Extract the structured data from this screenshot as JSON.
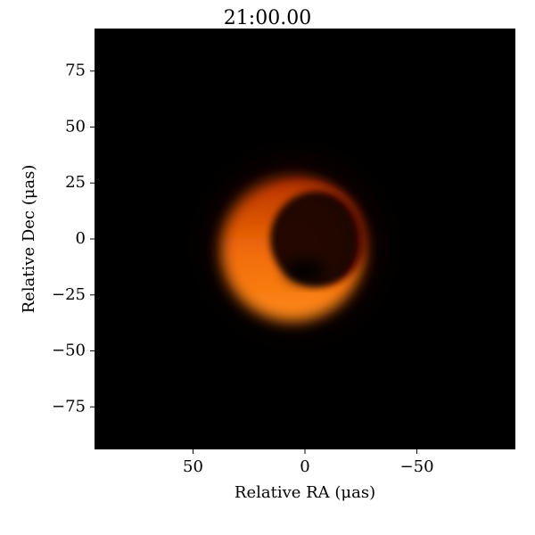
{
  "chart_data": {
    "type": "image",
    "title": "21:00.00",
    "x_label": "Relative RA (μas)",
    "y_label": "Relative Dec (μas)",
    "xlim": [
      94,
      -94
    ],
    "ylim": [
      -94,
      94
    ],
    "xticks": [
      50,
      0,
      {
        "value": -50,
        "label": "−50"
      }
    ],
    "yticks": [
      75,
      50,
      25,
      0,
      {
        "value": -25,
        "label": "−25"
      },
      {
        "value": -50,
        "label": "−50"
      },
      {
        "value": -75,
        "label": "−75"
      }
    ]
  }
}
